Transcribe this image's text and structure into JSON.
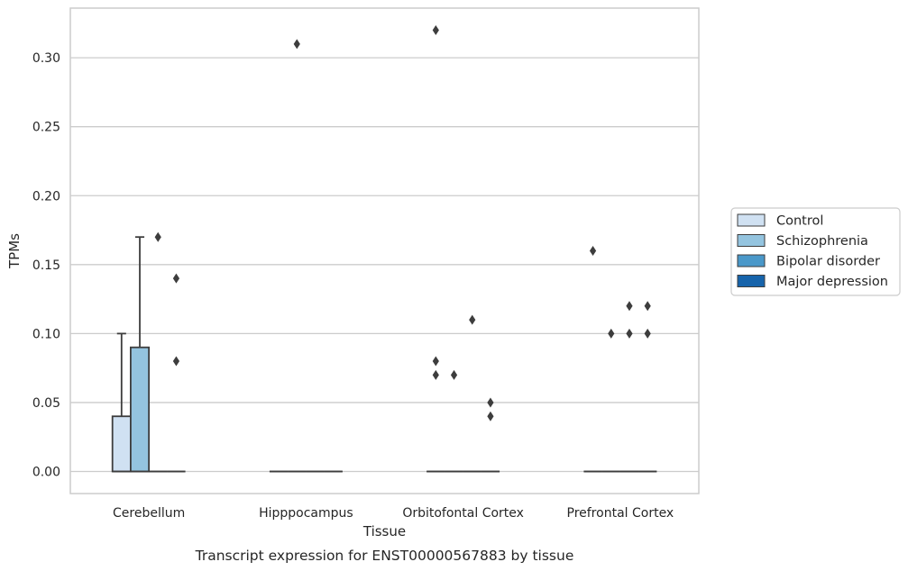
{
  "chart_data": {
    "type": "boxplot",
    "xlabel": "Tissue",
    "ylabel": "TPMs",
    "caption": "Transcript expression for ENST00000567883 by tissue",
    "ylim": [
      -0.016,
      0.336
    ],
    "yticks": [
      "0.00",
      "0.05",
      "0.10",
      "0.15",
      "0.20",
      "0.25",
      "0.30"
    ],
    "grid": true,
    "legend_position": "right",
    "categories": [
      "Cerebellum",
      "Hipppocampus",
      "Orbitofontal Cortex",
      "Prefrontal Cortex"
    ],
    "series": [
      {
        "name": "Control",
        "color": "#d0e1f2",
        "boxes": [
          {
            "q1": 0.0,
            "median": 0.0,
            "q3": 0.04,
            "whisker_low": 0.0,
            "whisker_high": 0.1,
            "outliers": []
          },
          {
            "q1": 0.0,
            "median": 0.0,
            "q3": 0.0,
            "whisker_low": 0.0,
            "whisker_high": 0.0,
            "outliers": []
          },
          {
            "q1": 0.0,
            "median": 0.0,
            "q3": 0.0,
            "whisker_low": 0.0,
            "whisker_high": 0.0,
            "outliers": [
              0.32,
              0.08,
              0.07
            ]
          },
          {
            "q1": 0.0,
            "median": 0.0,
            "q3": 0.0,
            "whisker_low": 0.0,
            "whisker_high": 0.0,
            "outliers": [
              0.16
            ]
          }
        ]
      },
      {
        "name": "Schizophrenia",
        "color": "#94c4df",
        "boxes": [
          {
            "q1": 0.0,
            "median": 0.0,
            "q3": 0.09,
            "whisker_low": 0.0,
            "whisker_high": 0.17,
            "outliers": []
          },
          {
            "q1": 0.0,
            "median": 0.0,
            "q3": 0.0,
            "whisker_low": 0.0,
            "whisker_high": 0.0,
            "outliers": [
              0.31
            ]
          },
          {
            "q1": 0.0,
            "median": 0.0,
            "q3": 0.0,
            "whisker_low": 0.0,
            "whisker_high": 0.0,
            "outliers": [
              0.07
            ]
          },
          {
            "q1": 0.0,
            "median": 0.0,
            "q3": 0.0,
            "whisker_low": 0.0,
            "whisker_high": 0.0,
            "outliers": [
              0.1
            ]
          }
        ]
      },
      {
        "name": "Bipolar disorder",
        "color": "#4a98c9",
        "boxes": [
          {
            "q1": 0.0,
            "median": 0.0,
            "q3": 0.0,
            "whisker_low": 0.0,
            "whisker_high": 0.0,
            "outliers": [
              0.17
            ]
          },
          {
            "q1": 0.0,
            "median": 0.0,
            "q3": 0.0,
            "whisker_low": 0.0,
            "whisker_high": 0.0,
            "outliers": []
          },
          {
            "q1": 0.0,
            "median": 0.0,
            "q3": 0.0,
            "whisker_low": 0.0,
            "whisker_high": 0.0,
            "outliers": [
              0.11
            ]
          },
          {
            "q1": 0.0,
            "median": 0.0,
            "q3": 0.0,
            "whisker_low": 0.0,
            "whisker_high": 0.0,
            "outliers": [
              0.12,
              0.1
            ]
          }
        ]
      },
      {
        "name": "Major depression",
        "color": "#1764ab",
        "boxes": [
          {
            "q1": 0.0,
            "median": 0.0,
            "q3": 0.0,
            "whisker_low": 0.0,
            "whisker_high": 0.0,
            "outliers": [
              0.14,
              0.08
            ]
          },
          {
            "q1": 0.0,
            "median": 0.0,
            "q3": 0.0,
            "whisker_low": 0.0,
            "whisker_high": 0.0,
            "outliers": []
          },
          {
            "q1": 0.0,
            "median": 0.0,
            "q3": 0.0,
            "whisker_low": 0.0,
            "whisker_high": 0.0,
            "outliers": [
              0.05,
              0.04
            ]
          },
          {
            "q1": 0.0,
            "median": 0.0,
            "q3": 0.0,
            "whisker_low": 0.0,
            "whisker_high": 0.0,
            "outliers": [
              0.12,
              0.1
            ]
          }
        ]
      }
    ]
  }
}
